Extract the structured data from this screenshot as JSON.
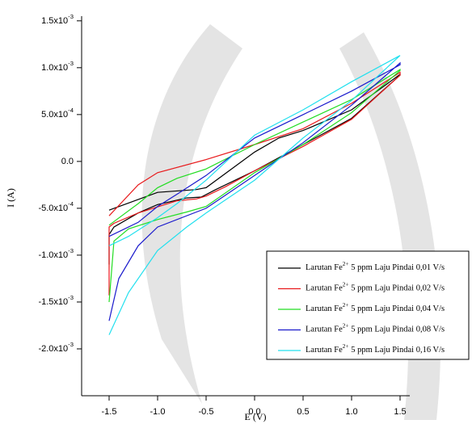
{
  "chart_data": {
    "type": "line",
    "xlabel": "E (V)",
    "ylabel": "I (A)",
    "xlim": [
      -1.8,
      1.6
    ],
    "ylim": [
      -0.0025,
      0.00155
    ],
    "xticks": [
      -1.5,
      {
        "value": -1.0,
        "label": "-1.0"
      },
      -0.5,
      {
        "value": 0.0,
        "label": "0.0"
      },
      0.5,
      {
        "value": 1.0,
        "label": "1.0"
      },
      1.5
    ],
    "yticks": [
      {
        "value": 0.0015,
        "label": "1.5x10-3"
      },
      {
        "value": 0.001,
        "label": "1.0x10-3"
      },
      {
        "value": 0.0005,
        "label": "5.0x10-4"
      },
      {
        "value": 0.0,
        "label": "0.0"
      },
      {
        "value": -0.0005,
        "label": "-5.0x10-4"
      },
      {
        "value": -0.001,
        "label": "-1.0x10-3"
      },
      {
        "value": -0.0015,
        "label": "-1.5x10-3"
      },
      {
        "value": -0.002,
        "label": "-2.0x10-3"
      }
    ],
    "series": [
      {
        "name": "Larutan Fe2+ 5 ppm Laju Pindai 0,01 V/s",
        "color": "#000000",
        "x": [
          -1.5,
          -1.5,
          -1.45,
          -1.2,
          -1.0,
          -0.7,
          -0.55,
          -0.4,
          0.0,
          0.5,
          1.0,
          1.5,
          1.5,
          1.0,
          0.5,
          0.25,
          0.0,
          -0.5,
          -0.6,
          -1.0,
          -1.5
        ],
        "values": [
          -0.0011,
          -0.00078,
          -0.0007,
          -0.00055,
          -0.00046,
          -0.00039,
          -0.00038,
          -0.0003,
          -0.0001,
          0.00018,
          0.00046,
          0.00092,
          0.00093,
          0.00055,
          0.00033,
          0.00025,
          0.0001,
          -0.00028,
          -0.0003,
          -0.00033,
          -0.00052
        ]
      },
      {
        "name": "Larutan Fe2+ 5 ppm Laju Pindai 0,02 V/s",
        "color": "#e8191b",
        "x": [
          -1.5,
          -1.5,
          -1.45,
          -1.2,
          -0.8,
          -0.6,
          -0.5,
          -0.3,
          0.0,
          0.5,
          1.0,
          1.5,
          1.5,
          1.0,
          0.5,
          0.0,
          -0.5,
          -1.0,
          -1.2,
          -1.5
        ],
        "values": [
          -0.00143,
          -0.0007,
          -0.00066,
          -0.00055,
          -0.00042,
          -0.0004,
          -0.00037,
          -0.00027,
          -0.0001,
          0.00016,
          0.00045,
          0.00092,
          0.00095,
          0.00062,
          0.00035,
          0.00018,
          2e-05,
          -0.00012,
          -0.00025,
          -0.00058
        ]
      },
      {
        "name": "Larutan Fe2+ 5 ppm Laju Pindai 0,04 V/s",
        "color": "#22dd22",
        "x": [
          -1.5,
          -1.45,
          -1.3,
          -1.0,
          -0.7,
          -0.5,
          0.0,
          0.5,
          1.0,
          1.5,
          1.5,
          1.0,
          0.5,
          0.0,
          -0.5,
          -0.8,
          -1.0,
          -1.2,
          -1.5
        ],
        "values": [
          -0.0015,
          -0.00085,
          -0.00072,
          -0.00062,
          -0.00054,
          -0.00048,
          -0.00012,
          0.00018,
          0.00052,
          0.00097,
          0.00098,
          0.00066,
          0.00042,
          0.00018,
          -8e-05,
          -0.00018,
          -0.00028,
          -0.00045,
          -0.00068
        ]
      },
      {
        "name": "Larutan Fe2+ 5 ppm Laju Pindai 0,08 V/s",
        "color": "#1a1acc",
        "x": [
          -1.5,
          -1.4,
          -1.2,
          -1.0,
          -0.5,
          0.0,
          0.5,
          1.0,
          1.5,
          1.5,
          1.0,
          0.5,
          0.0,
          -0.5,
          -0.8,
          -1.0,
          -1.2,
          -1.5
        ],
        "values": [
          -0.0017,
          -0.00125,
          -0.0009,
          -0.0007,
          -0.0005,
          -0.00015,
          0.0002,
          0.0006,
          0.00105,
          0.00103,
          0.00075,
          0.0005,
          0.00025,
          -0.00015,
          -0.00035,
          -0.00048,
          -0.00065,
          -0.0008
        ]
      },
      {
        "name": "Larutan Fe2+ 5 ppm Laju Pindai 0,16 V/s",
        "color": "#22e0ee",
        "x": [
          -1.5,
          -1.3,
          -1.0,
          -0.7,
          -0.5,
          0.0,
          0.5,
          1.0,
          1.5,
          1.5,
          1.0,
          0.5,
          0.0,
          -0.5,
          -0.8,
          -1.0,
          -1.3,
          -1.5
        ],
        "values": [
          -0.00185,
          -0.0014,
          -0.00095,
          -0.0007,
          -0.00055,
          -0.0002,
          0.00025,
          0.00065,
          0.00113,
          0.00113,
          0.00085,
          0.00055,
          0.00028,
          -0.0002,
          -0.00045,
          -0.0006,
          -0.0008,
          -0.0009
        ]
      }
    ]
  }
}
